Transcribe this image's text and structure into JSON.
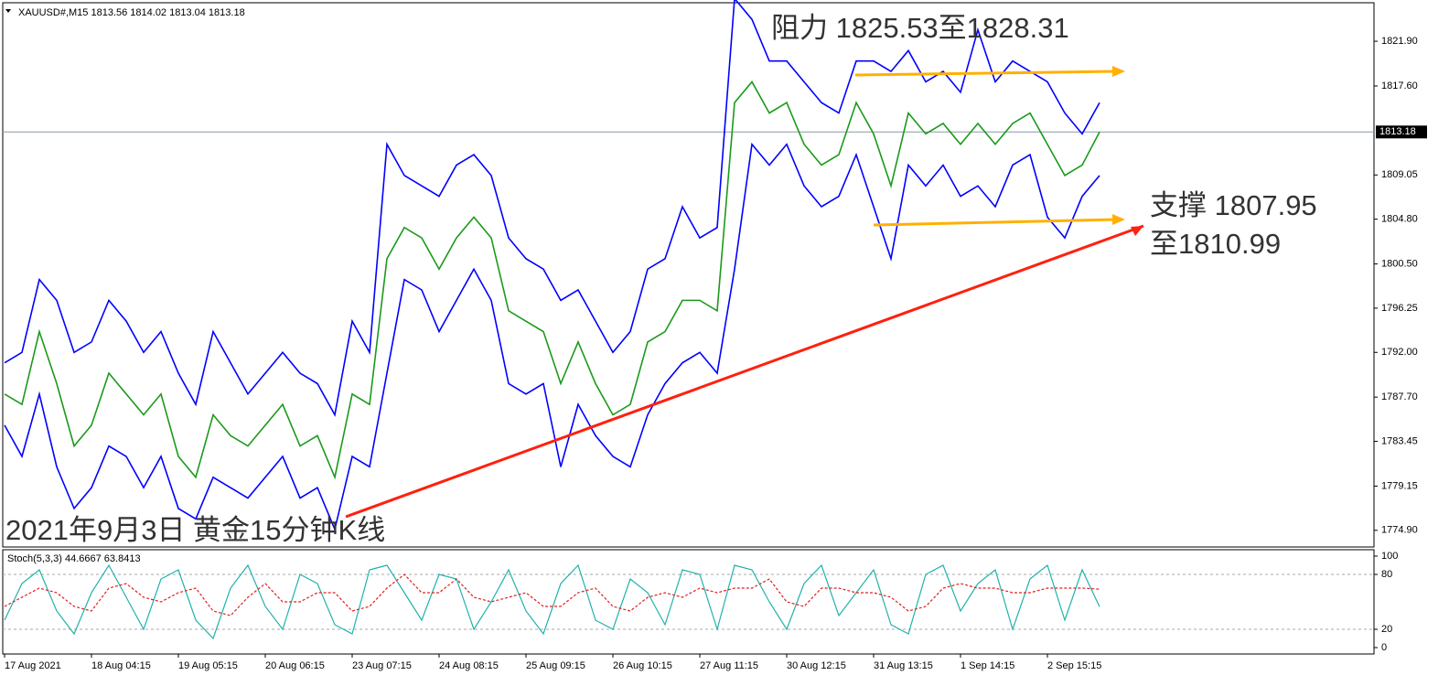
{
  "chart_data": [
    {
      "type": "line",
      "header": "XAUUSD#,M15  1813.56 1814.02 1813.04 1813.18",
      "categories": [
        "17 Aug 2021",
        null,
        null,
        null,
        null,
        "18 Aug 04:15",
        null,
        null,
        null,
        null,
        "19 Aug 05:15",
        null,
        null,
        null,
        null,
        "20 Aug 06:15",
        null,
        null,
        null,
        null,
        "23 Aug 07:15",
        null,
        null,
        null,
        null,
        "24 Aug 08:15",
        null,
        null,
        null,
        null,
        "25 Aug 09:15",
        null,
        null,
        null,
        null,
        "26 Aug 10:15",
        null,
        null,
        null,
        null,
        "27 Aug 11:15",
        null,
        null,
        null,
        null,
        "30 Aug 12:15",
        null,
        null,
        null,
        null,
        "31 Aug 13:15",
        null,
        null,
        null,
        null,
        "1 Sep 14:15",
        null,
        null,
        null,
        null,
        "2 Sep 15:15",
        null,
        null,
        null
      ],
      "series": [
        {
          "color": "#0000ff",
          "values": [
            1791,
            1792,
            1799,
            1797,
            1792,
            1793,
            1797,
            1795,
            1792,
            1794,
            1790,
            1787,
            1794,
            1791,
            1788,
            1790,
            1792,
            1790,
            1789,
            1786,
            1795,
            1792,
            1812,
            1809,
            1808,
            1807,
            1810,
            1811,
            1809,
            1803,
            1801,
            1800,
            1797,
            1798,
            1795,
            1792,
            1794,
            1800,
            1801,
            1806,
            1803,
            1804,
            1826,
            1824,
            1820,
            1820,
            1818,
            1816,
            1815,
            1820,
            1820,
            1819,
            1821,
            1818,
            1819,
            1817,
            1823,
            1818,
            1820,
            1819,
            1818,
            1815,
            1813,
            1816
          ]
        },
        {
          "color": "#0000ff",
          "values": [
            1785,
            1782,
            1788,
            1781,
            1777,
            1779,
            1783,
            1782,
            1779,
            1782,
            1777,
            1776,
            1780,
            1779,
            1778,
            1780,
            1782,
            1778,
            1779,
            1775,
            1782,
            1781,
            1790,
            1799,
            1798,
            1794,
            1797,
            1800,
            1797,
            1789,
            1788,
            1789,
            1781,
            1787,
            1784,
            1782,
            1781,
            1786,
            1789,
            1791,
            1792,
            1790,
            1800,
            1812,
            1810,
            1812,
            1808,
            1806,
            1807,
            1811,
            1806,
            1801,
            1810,
            1808,
            1810,
            1807,
            1808,
            1806,
            1810,
            1811,
            1805,
            1803,
            1807,
            1809
          ]
        },
        {
          "color": "#1a9a1a",
          "values": [
            1788,
            1787,
            1794,
            1789,
            1783,
            1785,
            1790,
            1788,
            1786,
            1788,
            1782,
            1780,
            1786,
            1784,
            1783,
            1785,
            1787,
            1783,
            1784,
            1780,
            1788,
            1787,
            1801,
            1804,
            1803,
            1800,
            1803,
            1805,
            1803,
            1796,
            1795,
            1794,
            1789,
            1793,
            1789,
            1786,
            1787,
            1793,
            1794,
            1797,
            1797,
            1796,
            1816,
            1818,
            1815,
            1816,
            1812,
            1810,
            1811,
            1816,
            1813,
            1808,
            1815,
            1813,
            1814,
            1812,
            1814,
            1812,
            1814,
            1815,
            1812,
            1809,
            1810,
            1813.18
          ]
        }
      ],
      "current_price": 1813.18,
      "ylim": [
        1773.3,
        1825.6
      ],
      "yticks": [
        {
          "value": 1774.9,
          "label": "1774.90"
        },
        1779.15,
        1783.45,
        {
          "value": 1787.7,
          "label": "1787.70"
        },
        {
          "value": 1792.0,
          "label": "1792.00"
        },
        1796.25,
        {
          "value": 1800.5,
          "label": "1800.50"
        },
        {
          "value": 1804.8,
          "label": "1804.80"
        },
        1809.05,
        {
          "value": 1817.6,
          "label": "1817.60"
        },
        {
          "value": 1821.9,
          "label": "1821.90"
        }
      ],
      "annotations": [
        "阻力 1825.53至1828.31",
        "支撑 1807.95",
        "至1810.99",
        "2021年9月3日 黄金15分钟K线"
      ]
    },
    {
      "type": "line",
      "header": "Stoch(5,3,3) 44.6667 63.8413",
      "series": [
        {
          "color": "#20b2aa",
          "values": [
            30,
            70,
            85,
            40,
            15,
            60,
            90,
            55,
            20,
            75,
            85,
            30,
            10,
            65,
            90,
            45,
            20,
            80,
            70,
            25,
            15,
            85,
            90,
            60,
            30,
            80,
            75,
            20,
            50,
            85,
            40,
            15,
            70,
            90,
            30,
            20,
            75,
            60,
            25,
            85,
            80,
            20,
            90,
            85,
            50,
            20,
            70,
            90,
            35,
            60,
            85,
            25,
            15,
            80,
            90,
            40,
            70,
            85,
            20,
            75,
            90,
            30,
            85,
            44.6667
          ]
        },
        {
          "color": "#e02020",
          "dashed": true,
          "values": [
            45,
            55,
            65,
            60,
            45,
            40,
            65,
            70,
            55,
            50,
            60,
            65,
            40,
            35,
            55,
            70,
            50,
            50,
            60,
            60,
            40,
            45,
            65,
            80,
            60,
            60,
            75,
            55,
            50,
            55,
            60,
            45,
            45,
            60,
            65,
            45,
            40,
            55,
            60,
            55,
            65,
            60,
            65,
            65,
            75,
            50,
            45,
            65,
            65,
            60,
            60,
            55,
            40,
            45,
            65,
            70,
            65,
            65,
            60,
            60,
            65,
            65,
            65,
            63.8413
          ]
        }
      ],
      "ylim": [
        -7,
        107
      ],
      "yticks": [
        0,
        20,
        80,
        100
      ],
      "levels": [
        20,
        80
      ]
    }
  ]
}
